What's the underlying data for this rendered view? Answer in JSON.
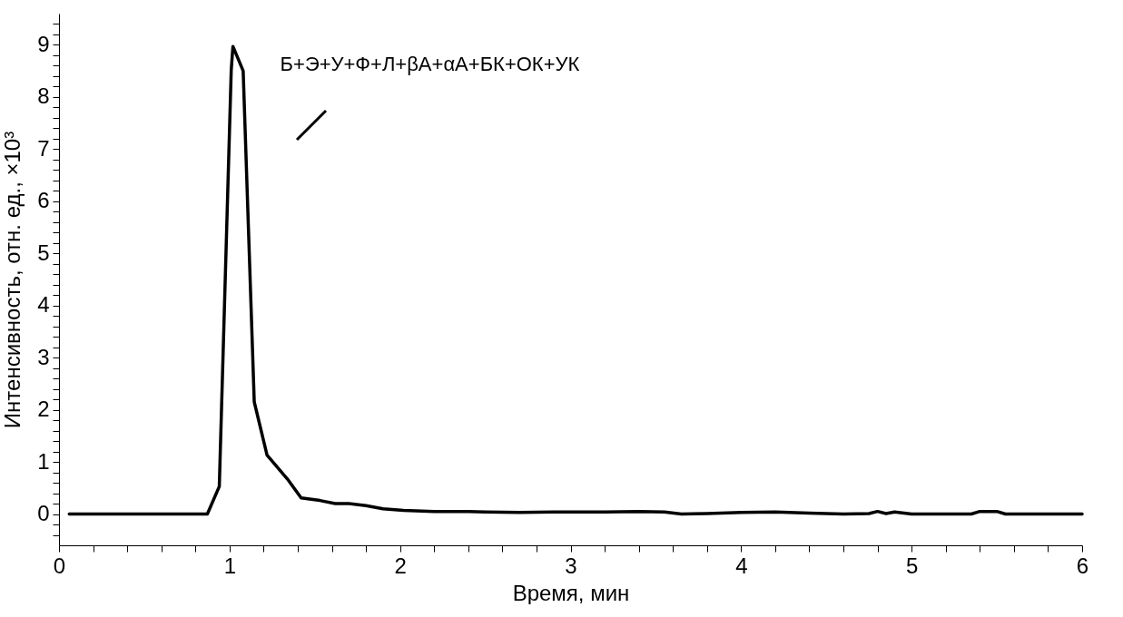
{
  "chart_data": {
    "type": "line",
    "xlabel": "Время, мин",
    "ylabel": "Интенсивность, отн. ед., ×10³",
    "annotations": [
      "Б+Э+У+Ф+Л+βА+αА+БК+ОК+УК"
    ],
    "series": [
      {
        "color": "#000000",
        "x": [
          0.06,
          0.3,
          0.87,
          0.94,
          1.01,
          1.02,
          1.08,
          1.145,
          1.22,
          1.34,
          1.42,
          1.53,
          1.62,
          1.7,
          1.8,
          1.9,
          2.02,
          2.2,
          2.4,
          2.5,
          2.7,
          2.9,
          3.2,
          3.4,
          3.55,
          3.65,
          3.8,
          4.0,
          4.2,
          4.4,
          4.6,
          4.75,
          4.8,
          4.85,
          4.9,
          5.0,
          5.35,
          5.4,
          5.5,
          5.55,
          6.0
        ],
        "values": [
          0,
          0,
          0,
          0.53,
          8.52,
          8.97,
          8.5,
          2.15,
          1.13,
          0.67,
          0.31,
          0.26,
          0.2,
          0.2,
          0.16,
          0.1,
          0.07,
          0.05,
          0.05,
          0.04,
          0.03,
          0.04,
          0.04,
          0.05,
          0.04,
          0,
          0.01,
          0.03,
          0.04,
          0.02,
          0,
          0.01,
          0.05,
          0.01,
          0.04,
          0,
          0,
          0.05,
          0.05,
          0,
          0
        ]
      }
    ],
    "xlim": [
      0,
      6
    ],
    "ylim": [
      -0.6,
      9.6
    ],
    "xticks": [
      0,
      {
        "value": 0.2,
        "label": null
      },
      {
        "value": 0.4,
        "label": null
      },
      {
        "value": 0.6,
        "label": null
      },
      {
        "value": 0.8,
        "label": null
      },
      1,
      {
        "value": 1.2,
        "label": null
      },
      {
        "value": 1.4,
        "label": null
      },
      {
        "value": 1.6,
        "label": null
      },
      {
        "value": 1.8,
        "label": null
      },
      2,
      {
        "value": 2.2,
        "label": null
      },
      {
        "value": 2.4,
        "label": null
      },
      {
        "value": 2.6,
        "label": null
      },
      {
        "value": 2.8,
        "label": null
      },
      3,
      {
        "value": 3.2,
        "label": null
      },
      {
        "value": 3.4,
        "label": null
      },
      {
        "value": 3.6,
        "label": null
      },
      {
        "value": 3.8,
        "label": null
      },
      4,
      {
        "value": 4.2,
        "label": null
      },
      {
        "value": 4.4,
        "label": null
      },
      {
        "value": 4.6,
        "label": null
      },
      {
        "value": 4.8,
        "label": null
      },
      5,
      {
        "value": 5.2,
        "label": null
      },
      {
        "value": 5.4,
        "label": null
      },
      {
        "value": 5.6,
        "label": null
      },
      {
        "value": 5.8,
        "label": null
      },
      6
    ],
    "yticks": [
      {
        "value": -0.4,
        "label": null
      },
      {
        "value": -0.2,
        "label": null
      },
      0,
      {
        "value": 0.2,
        "label": null
      },
      {
        "value": 0.4,
        "label": null
      },
      {
        "value": 0.6,
        "label": null
      },
      {
        "value": 0.8,
        "label": null
      },
      1,
      {
        "value": 1.2,
        "label": null
      },
      {
        "value": 1.4,
        "label": null
      },
      {
        "value": 1.6,
        "label": null
      },
      {
        "value": 1.8,
        "label": null
      },
      2,
      {
        "value": 2.2,
        "label": null
      },
      {
        "value": 2.4,
        "label": null
      },
      {
        "value": 2.6,
        "label": null
      },
      {
        "value": 2.8,
        "label": null
      },
      3,
      {
        "value": 3.2,
        "label": null
      },
      {
        "value": 3.4,
        "label": null
      },
      {
        "value": 3.6,
        "label": null
      },
      {
        "value": 3.8,
        "label": null
      },
      4,
      {
        "value": 4.2,
        "label": null
      },
      {
        "value": 4.4,
        "label": null
      },
      {
        "value": 4.6,
        "label": null
      },
      {
        "value": 4.8,
        "label": null
      },
      5,
      {
        "value": 5.2,
        "label": null
      },
      {
        "value": 5.4,
        "label": null
      },
      {
        "value": 5.6,
        "label": null
      },
      {
        "value": 5.8,
        "label": null
      },
      6,
      {
        "value": 6.2,
        "label": null
      },
      {
        "value": 6.4,
        "label": null
      },
      {
        "value": 6.6,
        "label": null
      },
      {
        "value": 6.8,
        "label": null
      },
      7,
      {
        "value": 7.2,
        "label": null
      },
      {
        "value": 7.4,
        "label": null
      },
      {
        "value": 7.6,
        "label": null
      },
      {
        "value": 7.8,
        "label": null
      },
      8,
      {
        "value": 8.2,
        "label": null
      },
      {
        "value": 8.4,
        "label": null
      },
      {
        "value": 8.6,
        "label": null
      },
      {
        "value": 8.8,
        "label": null
      },
      9,
      {
        "value": 9.2,
        "label": null
      },
      {
        "value": 9.4,
        "label": null
      }
    ],
    "grid": false,
    "legend": false,
    "marker": "none",
    "line_style": "solid"
  }
}
